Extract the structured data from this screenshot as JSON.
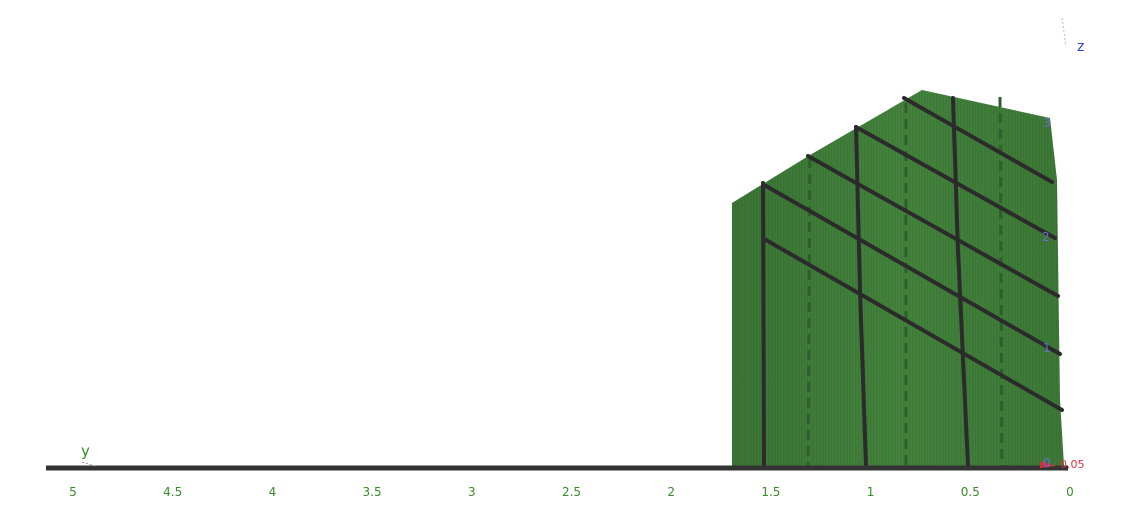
{
  "chart_data": {
    "type": "3d-surface",
    "view": "projection onto y-z plane",
    "axes": {
      "y": {
        "label": "y",
        "range": [
          0,
          5
        ],
        "reversed": true,
        "ticks": [
          "5",
          "4.5",
          "4",
          "3.5",
          "3",
          "2.5",
          "2",
          "1.5",
          "1",
          "0.5",
          "0"
        ]
      },
      "z": {
        "label": "z",
        "ticks": [
          "3",
          "2",
          "1",
          "0"
        ]
      },
      "x": {
        "label": "x",
        "tick_text": "0.05"
      }
    },
    "surface": {
      "color": "#3f7a3a",
      "y_extent": [
        0,
        1.7
      ],
      "z_top_at_y": [
        {
          "y": 0.0,
          "z": 3.0
        },
        {
          "y": 0.75,
          "z": 3.35
        },
        {
          "y": 1.7,
          "z": 2.4
        }
      ]
    },
    "grid_lines_y": [
      1.55,
      1.05,
      0.55
    ],
    "grid_lines_diagonal_z_at_y0": [
      0.55,
      1.05,
      1.55,
      2.05,
      2.6
    ],
    "dashed_lines_y": [
      1.3,
      0.8,
      0.3
    ]
  }
}
